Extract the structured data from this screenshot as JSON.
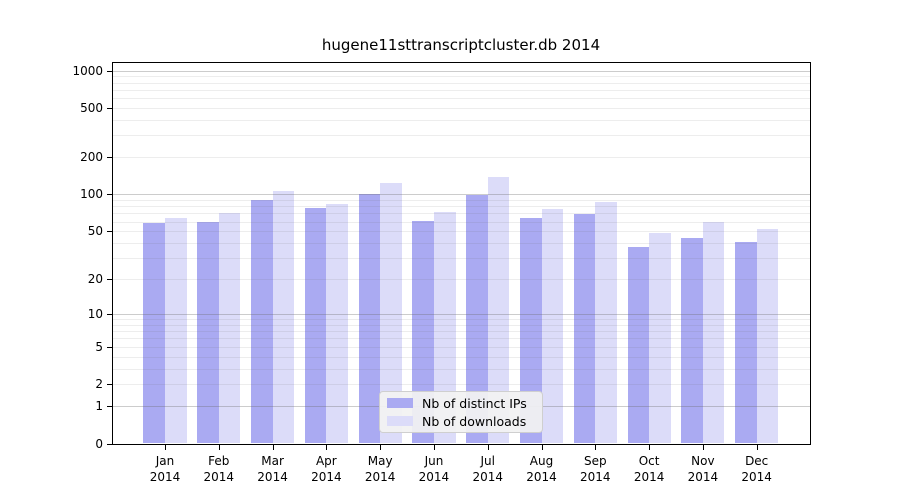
{
  "title": "hugene11sttranscriptcluster.db 2014",
  "chart_data": {
    "type": "bar",
    "title": "hugene11sttranscriptcluster.db 2014",
    "x_categories": [
      "Jan",
      "Feb",
      "Mar",
      "Apr",
      "May",
      "Jun",
      "Jul",
      "Aug",
      "Sep",
      "Oct",
      "Nov",
      "Dec"
    ],
    "x_year_label": "2014",
    "series": [
      {
        "name": "Nb of distinct IPs",
        "color": "#aaaaf2",
        "values": [
          58,
          60,
          90,
          77,
          100,
          61,
          98,
          64,
          69,
          37,
          44,
          41
        ]
      },
      {
        "name": "Nb of downloads",
        "color": "#dcdcf9",
        "values": [
          64,
          71,
          107,
          84,
          123,
          72,
          138,
          76,
          87,
          48,
          60,
          52
        ]
      }
    ],
    "yscale": "log1p",
    "yticks": [
      0,
      1,
      2,
      5,
      10,
      20,
      50,
      100,
      200,
      500,
      1000
    ],
    "ylim": [
      0,
      1172
    ],
    "grid": true,
    "legend_position": "lower-center-inside"
  },
  "colors": {
    "background": "#ffffff",
    "axis": "#000000",
    "grid_major": "#c9c9c9",
    "grid_minor": "#ededed",
    "legend_background": "#f2f2f2",
    "legend_border": "#cfcfcf",
    "text": "#000000"
  }
}
